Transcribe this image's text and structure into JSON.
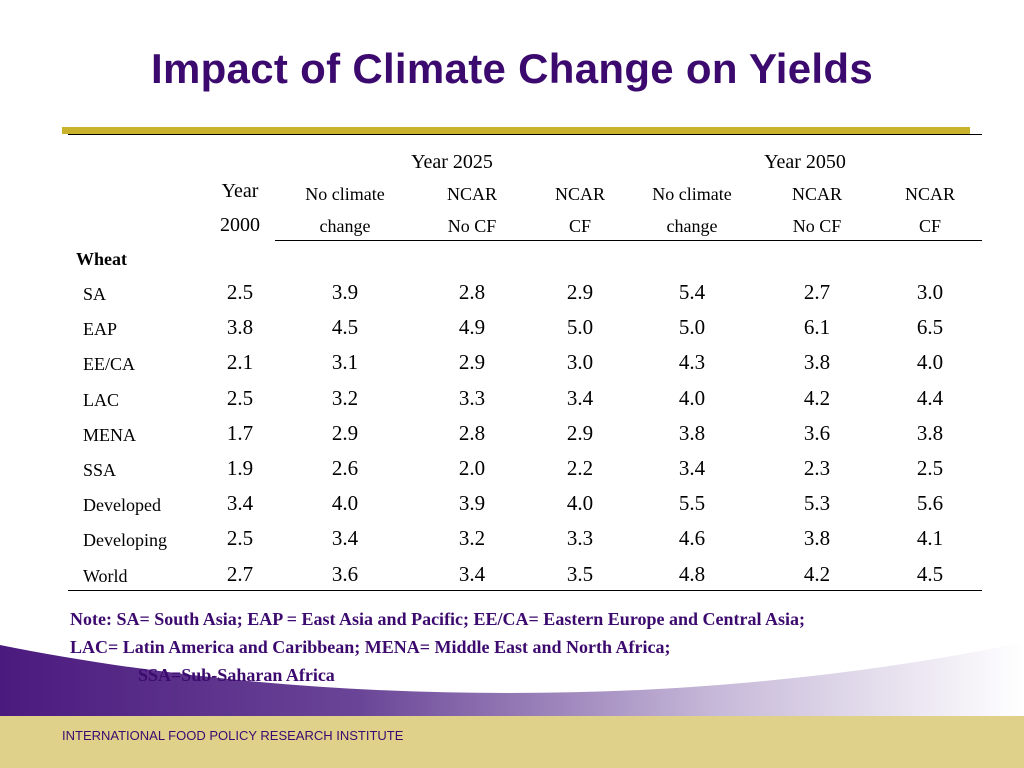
{
  "slide": {
    "title": "Impact of Climate Change on Yields",
    "footer": "INTERNATIONAL FOOD POLICY RESEARCH INSTITUTE"
  },
  "table": {
    "year2000_line1": "Year",
    "year2000_line2": "2000",
    "group_2025": "Year 2025",
    "group_2050": "Year 2050",
    "sub_headers": [
      {
        "line1": "No climate",
        "line2": "change"
      },
      {
        "line1": "NCAR",
        "line2": "No CF"
      },
      {
        "line1": "NCAR",
        "line2": "CF"
      },
      {
        "line1": "No climate",
        "line2": "change"
      },
      {
        "line1": "NCAR",
        "line2": "No CF"
      },
      {
        "line1": "NCAR",
        "line2": "CF"
      }
    ],
    "crop": "Wheat",
    "rows": [
      {
        "label": "SA",
        "values": [
          "2.5",
          "3.9",
          "2.8",
          "2.9",
          "5.4",
          "2.7",
          "3.0"
        ]
      },
      {
        "label": "EAP",
        "values": [
          "3.8",
          "4.5",
          "4.9",
          "5.0",
          "5.0",
          "6.1",
          "6.5"
        ]
      },
      {
        "label": "EE/CA",
        "values": [
          "2.1",
          "3.1",
          "2.9",
          "3.0",
          "4.3",
          "3.8",
          "4.0"
        ]
      },
      {
        "label": "LAC",
        "values": [
          "2.5",
          "3.2",
          "3.3",
          "3.4",
          "4.0",
          "4.2",
          "4.4"
        ]
      },
      {
        "label": "MENA",
        "values": [
          "1.7",
          "2.9",
          "2.8",
          "2.9",
          "3.8",
          "3.6",
          "3.8"
        ]
      },
      {
        "label": "SSA",
        "values": [
          "1.9",
          "2.6",
          "2.0",
          "2.2",
          "3.4",
          "2.3",
          "2.5"
        ]
      },
      {
        "label": "Developed",
        "values": [
          "3.4",
          "4.0",
          "3.9",
          "4.0",
          "5.5",
          "5.3",
          "5.6"
        ]
      },
      {
        "label": "Developing",
        "values": [
          "2.5",
          "3.4",
          "3.2",
          "3.3",
          "4.6",
          "3.8",
          "4.1"
        ]
      },
      {
        "label": "World",
        "values": [
          "2.7",
          "3.6",
          "3.4",
          "3.5",
          "4.8",
          "4.2",
          "4.5"
        ]
      }
    ]
  },
  "note": {
    "line1": "Note: SA= South Asia; EAP = East Asia and Pacific; EE/CA= Eastern Europe and Central Asia;",
    "line2": "LAC= Latin America and Caribbean; MENA= Middle East and North Africa;",
    "line3": "SSA=Sub-Saharan Africa"
  },
  "colors": {
    "title": "#3c0a6e",
    "accent_gold": "#c9b32d",
    "footer_band": "#dfd08a",
    "swoosh_purple": "#4b1a7e"
  }
}
